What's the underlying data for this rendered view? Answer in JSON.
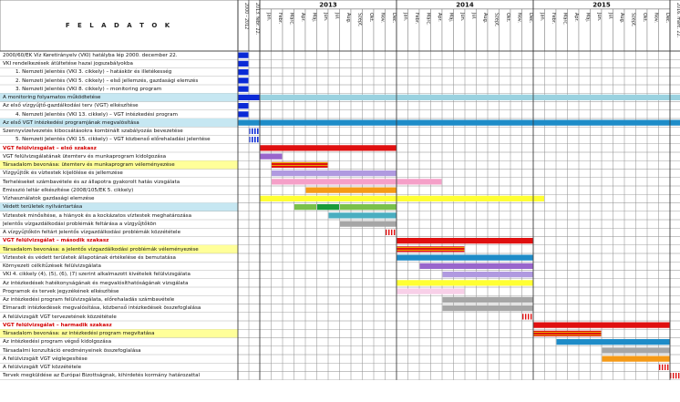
{
  "header": {
    "title": "F E L A D A T O K",
    "pre_columns": [
      "2000 - 2012",
      "2013. febr. 22."
    ],
    "years": [
      "2013",
      "2014",
      "2015"
    ],
    "months": [
      "Jan.",
      "Febr.",
      "Márc.",
      "Ápr.",
      "Máj.",
      "Jún.",
      "Júl.",
      "Aug.",
      "Szept.",
      "Okt.",
      "Nov.",
      "Dec."
    ],
    "post_column": "2016. márc. 22."
  },
  "colors": {
    "blue": "#0a2ad6",
    "cyan": "#9ad2e0",
    "skyblue": "#1e8cc8",
    "red": "#e01010",
    "redstripe": "#e01010",
    "stripe_gold": "#e6a800",
    "purple": "#9966cc",
    "lavender": "#b09ae0",
    "pink": "#f5a0c8",
    "orange": "#f59a16",
    "yellow": "#ffff33",
    "green": "#79c04a",
    "darkgreen": "#1a9a3a",
    "teal": "#4aaec0",
    "gray": "#a6a6a6",
    "lightpink": "#f8d0e8",
    "highlight_row": "#ffff99",
    "band_row": "#c6e7f2"
  },
  "tasks": [
    {
      "label": "2000/60/EK Víz Keretirányelv (VKI) hatályba lép 2000. december 22.",
      "style": "",
      "row_bg": "",
      "bars": [
        {
          "start": 0,
          "end": 1,
          "color": "blue"
        }
      ]
    },
    {
      "label": "VKI rendelkezések átültetése hazai jogszabályokba",
      "style": "",
      "row_bg": "",
      "bars": [
        {
          "start": 0,
          "end": 1,
          "color": "blue"
        }
      ]
    },
    {
      "label": "1.    Nemzeti Jelentés (VKI 3. cikkely) – hatáskör és illetékesség",
      "style": "indent",
      "row_bg": "",
      "bars": [
        {
          "start": 0,
          "end": 1,
          "color": "blue"
        }
      ]
    },
    {
      "label": "2.    Nemzeti Jelentés (VKI 5. cikkely) – első jellemzés, gazdasági elemzés",
      "style": "indent",
      "row_bg": "",
      "bars": [
        {
          "start": 0,
          "end": 1,
          "color": "blue"
        }
      ]
    },
    {
      "label": "3.    Nemzeti Jelentés (VKI 8. cikkely) – monitoring program",
      "style": "indent",
      "row_bg": "",
      "bars": [
        {
          "start": 0,
          "end": 1,
          "color": "blue"
        }
      ]
    },
    {
      "label": "A monitoring folyamatos működtetése",
      "style": "",
      "row_bg": "band_row",
      "bars": [
        {
          "start": 0,
          "end": 2,
          "color": "blue"
        },
        {
          "start": 2,
          "end": 39,
          "color": "cyan"
        }
      ]
    },
    {
      "label": "Az első vízgyűjtő-gazdálkodási terv (VGT) elkészítése",
      "style": "",
      "row_bg": "",
      "bars": [
        {
          "start": 0,
          "end": 1,
          "color": "blue"
        }
      ]
    },
    {
      "label": "4.    Nemzeti Jelentés (VKI 13. cikkely) – VGT intézkedési program",
      "style": "indent",
      "row_bg": "",
      "bars": [
        {
          "start": 0,
          "end": 1,
          "color": "blue"
        }
      ]
    },
    {
      "label": "Az első VGT intézkedési programjának megvalósítása",
      "style": "",
      "row_bg": "band_row",
      "bars": [
        {
          "start": 0,
          "end": 39,
          "color": "skyblue"
        }
      ]
    },
    {
      "label": "Szennyvízelvezetés kibocsátásokra kombinált szabályozás bevezetése",
      "style": "",
      "row_bg": "",
      "bars": [
        {
          "start": 1,
          "end": 2,
          "color": "blue"
        }
      ]
    },
    {
      "label": "5.    Nemzeti Jelentés (VKI 15. cikkely) – VGT közbenső előrehaladási jelentése",
      "style": "indent",
      "row_bg": "",
      "bars": [
        {
          "start": 1,
          "end": 2,
          "color": "blue"
        }
      ]
    },
    {
      "label": "VGT felülvizsgálat – első szakasz",
      "style": "red",
      "row_bg": "",
      "bars": [
        {
          "start": 2,
          "end": 14,
          "color": "red"
        }
      ]
    },
    {
      "label": "VGT felülvizsgálatának ütemterv és munkaprogram kidolgozása",
      "style": "",
      "row_bg": "",
      "bars": [
        {
          "start": 2,
          "end": 4,
          "color": "purple"
        }
      ]
    },
    {
      "label": "Társadalom bevonása: ütemterv és munkaprogram véleményezése",
      "style": "",
      "row_bg": "highlight_row",
      "bars": [
        {
          "start": 3,
          "end": 8,
          "color": "stripe"
        }
      ]
    },
    {
      "label": "Vízgyűjtők és víztestek kijelölése és jellemzése",
      "style": "",
      "row_bg": "",
      "bars": [
        {
          "start": 3,
          "end": 14,
          "color": "lavender"
        }
      ]
    },
    {
      "label": "Terheléseket számbavétele és az állapotra gyakorolt hatás vizsgálata",
      "style": "",
      "row_bg": "",
      "bars": [
        {
          "start": 3,
          "end": 14,
          "color": "pink"
        },
        {
          "start": 14,
          "end": 18,
          "color": "pink"
        }
      ]
    },
    {
      "label": "Emisszió leltár elkészítése (2008/105/EK 5. cikkely)",
      "style": "",
      "row_bg": "",
      "bars": [
        {
          "start": 6,
          "end": 14,
          "color": "orange"
        }
      ]
    },
    {
      "label": "Vízhasználatok gazdasági elemzése",
      "style": "",
      "row_bg": "",
      "bars": [
        {
          "start": 2,
          "end": 27,
          "color": "yellow"
        }
      ]
    },
    {
      "label": "Védett területek nyilvántartása",
      "style": "",
      "row_bg": "band_row",
      "bars": [
        {
          "start": 5,
          "end": 7,
          "color": "green"
        },
        {
          "start": 7,
          "end": 9,
          "color": "darkgreen"
        },
        {
          "start": 9,
          "end": 14,
          "color": "green"
        }
      ]
    },
    {
      "label": "Víztestek minősítése, a hiányok és a kockázatos víztestek meghatározása",
      "style": "",
      "row_bg": "",
      "bars": [
        {
          "start": 8,
          "end": 14,
          "color": "teal"
        }
      ]
    },
    {
      "label": "Jelentős vízgazdálkodási problémák feltárása a vízgyűjtőkön",
      "style": "",
      "row_bg": "",
      "bars": [
        {
          "start": 9,
          "end": 14,
          "color": "gray"
        }
      ]
    },
    {
      "label": "A vízgyűjtőkön feltárt jelentős vízgazdálkodási problémák közzététele",
      "style": "",
      "row_bg": "",
      "bars": [
        {
          "start": 13,
          "end": 14,
          "color": "redstripe"
        }
      ]
    },
    {
      "label": "VGT felülvizsgálat – második szakasz",
      "style": "red",
      "row_bg": "",
      "bars": [
        {
          "start": 14,
          "end": 26,
          "color": "red"
        }
      ]
    },
    {
      "label": "Társadalom bevonása: a jelentős vízgazdálkodási problémák véleményezése",
      "style": "",
      "row_bg": "highlight_row",
      "bars": [
        {
          "start": 14,
          "end": 20,
          "color": "stripe"
        }
      ]
    },
    {
      "label": "Víztestek és védett területek állapotának értékelése és bemutatása",
      "style": "",
      "row_bg": "",
      "bars": [
        {
          "start": 14,
          "end": 26,
          "color": "skyblue"
        }
      ]
    },
    {
      "label": "Környezeti célkitűzések felülvizsgálata",
      "style": "",
      "row_bg": "",
      "bars": [
        {
          "start": 16,
          "end": 26,
          "color": "purple"
        }
      ]
    },
    {
      "label": "VKI 4. cikkely (4), (5), (6), (7) szerint alkalmazott kivételek felülvizsgálata",
      "style": "",
      "row_bg": "",
      "bars": [
        {
          "start": 18,
          "end": 26,
          "color": "lavender"
        }
      ]
    },
    {
      "label": "Az intézkedések hatékonyságának és megvalósíthatóságának vizsgálata",
      "style": "",
      "row_bg": "",
      "bars": [
        {
          "start": 14,
          "end": 26,
          "color": "yellow"
        }
      ]
    },
    {
      "label": "Programok és tervek jegyzékének elkészítése",
      "style": "",
      "row_bg": "",
      "bars": [
        {
          "start": 14,
          "end": 20,
          "color": "lightpink"
        }
      ]
    },
    {
      "label": "Az intézkedési program felülvizsgálata, előrehaladás számbavétele",
      "style": "",
      "row_bg": "",
      "bars": [
        {
          "start": 18,
          "end": 26,
          "color": "gray"
        }
      ]
    },
    {
      "label": "Elmaradt intézkedések megvalósítása, közbenső intézkedések összefoglalása",
      "style": "",
      "row_bg": "",
      "bars": [
        {
          "start": 18,
          "end": 26,
          "color": "gray"
        }
      ]
    },
    {
      "label": "A felülvizsgált VGT tervezetének közzététele",
      "style": "",
      "row_bg": "",
      "bars": [
        {
          "start": 25,
          "end": 26,
          "color": "redstripe"
        }
      ]
    },
    {
      "label": "VGT felülvizsgálat – harmadik szakasz",
      "style": "red",
      "row_bg": "",
      "bars": [
        {
          "start": 26,
          "end": 38,
          "color": "red"
        }
      ]
    },
    {
      "label": "Társadalom bevonása: az intézkedési program megvitatása",
      "style": "",
      "row_bg": "highlight_row",
      "bars": [
        {
          "start": 26,
          "end": 32,
          "color": "stripe"
        }
      ]
    },
    {
      "label": "Az intézkedési program végső kidolgozása",
      "style": "",
      "row_bg": "",
      "bars": [
        {
          "start": 28,
          "end": 38,
          "color": "skyblue"
        }
      ]
    },
    {
      "label": "Társadalmi konzultáció eredményeinek összefoglalása",
      "style": "",
      "row_bg": "",
      "bars": [
        {
          "start": 32,
          "end": 38,
          "color": "gray"
        }
      ]
    },
    {
      "label": "A felülvizsgált VGT véglegesítése",
      "style": "",
      "row_bg": "",
      "bars": [
        {
          "start": 32,
          "end": 38,
          "color": "orange"
        }
      ]
    },
    {
      "label": "A felülvizsgált VGT közzététele",
      "style": "",
      "row_bg": "",
      "bars": [
        {
          "start": 37,
          "end": 38,
          "color": "redstripe"
        }
      ]
    },
    {
      "label": "Tervek megküldése az Európai Bizottságnak, kihirdetés kormány határozattal",
      "style": "",
      "row_bg": "",
      "bars": [
        {
          "start": 38,
          "end": 39,
          "color": "redstripe"
        }
      ]
    }
  ]
}
